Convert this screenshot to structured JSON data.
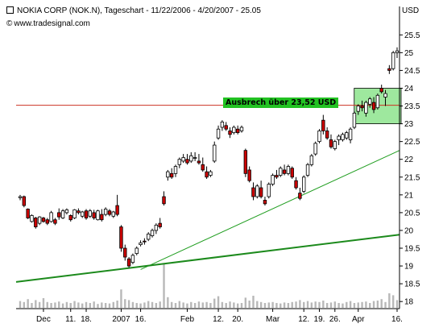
{
  "header": {
    "title": "NOKIA CORP (NOK.N), Tageschart - 11/22/2006 - 4/20/2007 - 25.05",
    "source": "www.tradesignal.com",
    "source_symbol": "©"
  },
  "axis_unit": "USD",
  "chart_data": {
    "type": "candlestick",
    "title": "NOKIA CORP (NOK.N), Tageschart - 11/22/2006 - 4/20/2007 - 25.05",
    "ylabel": "USD",
    "ylim": [
      17.8,
      26.3
    ],
    "y_ticks": [
      18,
      18.5,
      19,
      19.5,
      20,
      20.5,
      21,
      21.5,
      22,
      22.5,
      23,
      23.5,
      24,
      24.5,
      25,
      25.5
    ],
    "x_tick_labels": [
      "Dec",
      "11.",
      "18.",
      "2007",
      "16.",
      "Feb",
      "12.",
      "20.",
      "Mar",
      "12.",
      "19.",
      "26.",
      "Apr",
      "16."
    ],
    "x_tick_index": [
      6,
      13,
      17,
      26,
      31,
      43,
      51,
      56,
      65,
      73,
      77,
      81,
      87,
      97
    ],
    "candles": [
      [
        20.92,
        21.0,
        20.85,
        20.95
      ],
      [
        20.95,
        20.98,
        20.65,
        20.7
      ],
      [
        20.6,
        20.62,
        20.32,
        20.35
      ],
      [
        20.25,
        20.45,
        20.22,
        20.42
      ],
      [
        20.35,
        20.38,
        20.05,
        20.1
      ],
      [
        20.2,
        20.4,
        20.15,
        20.38
      ],
      [
        20.35,
        20.38,
        20.22,
        20.25
      ],
      [
        20.3,
        20.35,
        20.15,
        20.2
      ],
      [
        20.25,
        20.55,
        20.22,
        20.5
      ],
      [
        20.3,
        20.35,
        20.15,
        20.2
      ],
      [
        20.5,
        20.62,
        20.3,
        20.38
      ],
      [
        20.35,
        20.6,
        20.32,
        20.55
      ],
      [
        20.5,
        20.62,
        20.45,
        20.58
      ],
      [
        20.42,
        20.45,
        20.25,
        20.3
      ],
      [
        20.35,
        20.6,
        20.32,
        20.58
      ],
      [
        20.55,
        20.62,
        20.45,
        20.5
      ],
      [
        20.4,
        20.55,
        20.35,
        20.52
      ],
      [
        20.55,
        20.6,
        20.3,
        20.35
      ],
      [
        20.4,
        20.6,
        20.35,
        20.55
      ],
      [
        20.5,
        20.58,
        20.3,
        20.35
      ],
      [
        20.3,
        20.58,
        20.28,
        20.55
      ],
      [
        20.45,
        20.6,
        20.25,
        20.3
      ],
      [
        20.45,
        20.65,
        20.4,
        20.6
      ],
      [
        20.55,
        20.6,
        20.4,
        20.45
      ],
      [
        20.4,
        20.55,
        20.35,
        20.52
      ],
      [
        20.7,
        21.0,
        20.4,
        20.45
      ],
      [
        20.1,
        20.15,
        19.4,
        19.5
      ],
      [
        19.5,
        19.6,
        19.15,
        19.25
      ],
      [
        19.2,
        19.25,
        18.95,
        19.0
      ],
      [
        19.1,
        19.35,
        19.05,
        19.3
      ],
      [
        19.35,
        19.55,
        19.3,
        19.5
      ],
      [
        19.6,
        19.72,
        19.55,
        19.65
      ],
      [
        19.7,
        19.78,
        19.6,
        19.68
      ],
      [
        19.75,
        19.95,
        19.7,
        19.9
      ],
      [
        19.85,
        20.05,
        19.8,
        20.0
      ],
      [
        20.0,
        20.2,
        19.9,
        20.15
      ],
      [
        20.2,
        20.35,
        20.05,
        20.1
      ],
      [
        20.95,
        21.1,
        20.7,
        20.75
      ],
      [
        21.5,
        21.7,
        21.4,
        21.65
      ],
      [
        21.6,
        21.75,
        21.45,
        21.5
      ],
      [
        21.6,
        21.85,
        21.5,
        21.8
      ],
      [
        21.85,
        22.05,
        21.75,
        22.0
      ],
      [
        21.95,
        22.15,
        21.9,
        22.05
      ],
      [
        22.0,
        22.15,
        21.85,
        21.9
      ],
      [
        21.95,
        22.2,
        21.9,
        22.1
      ],
      [
        22.05,
        22.2,
        21.95,
        22.05
      ],
      [
        21.95,
        22.15,
        21.85,
        21.9
      ],
      [
        21.85,
        22.05,
        21.65,
        21.7
      ],
      [
        21.65,
        21.8,
        21.45,
        21.5
      ],
      [
        21.55,
        21.7,
        21.5,
        21.65
      ],
      [
        21.95,
        22.5,
        21.9,
        22.4
      ],
      [
        22.6,
        22.95,
        22.55,
        22.85
      ],
      [
        22.9,
        23.1,
        22.8,
        23.05
      ],
      [
        22.95,
        23.05,
        22.8,
        22.85
      ],
      [
        22.8,
        22.9,
        22.6,
        22.7
      ],
      [
        22.75,
        22.95,
        22.7,
        22.9
      ],
      [
        22.85,
        22.95,
        22.7,
        22.75
      ],
      [
        22.8,
        22.95,
        22.75,
        22.9
      ],
      [
        22.25,
        22.3,
        21.5,
        21.6
      ],
      [
        21.7,
        21.8,
        21.35,
        21.4
      ],
      [
        21.2,
        21.35,
        20.85,
        20.95
      ],
      [
        20.95,
        21.3,
        20.9,
        21.25
      ],
      [
        21.2,
        21.4,
        20.9,
        20.95
      ],
      [
        20.85,
        20.95,
        20.7,
        20.75
      ],
      [
        20.95,
        21.35,
        20.9,
        21.3
      ],
      [
        21.3,
        21.6,
        21.25,
        21.55
      ],
      [
        21.55,
        21.7,
        21.45,
        21.5
      ],
      [
        21.55,
        21.8,
        21.5,
        21.75
      ],
      [
        21.7,
        21.85,
        21.55,
        21.6
      ],
      [
        21.6,
        21.85,
        21.55,
        21.8
      ],
      [
        21.75,
        21.8,
        21.45,
        21.5
      ],
      [
        21.4,
        21.5,
        21.15,
        21.2
      ],
      [
        21.05,
        21.2,
        20.85,
        20.9
      ],
      [
        21.1,
        21.55,
        21.05,
        21.5
      ],
      [
        21.55,
        21.9,
        21.5,
        21.85
      ],
      [
        21.85,
        22.15,
        21.8,
        22.1
      ],
      [
        22.15,
        22.5,
        22.1,
        22.45
      ],
      [
        22.5,
        22.85,
        22.45,
        22.8
      ],
      [
        23.1,
        23.25,
        22.7,
        22.8
      ],
      [
        22.8,
        22.9,
        22.55,
        22.6
      ],
      [
        22.55,
        22.7,
        22.3,
        22.35
      ],
      [
        22.3,
        22.55,
        22.25,
        22.5
      ],
      [
        22.55,
        22.7,
        22.4,
        22.65
      ],
      [
        22.55,
        22.75,
        22.5,
        22.7
      ],
      [
        22.6,
        22.8,
        22.55,
        22.75
      ],
      [
        22.55,
        22.9,
        22.45,
        22.85
      ],
      [
        22.9,
        23.35,
        22.85,
        23.3
      ],
      [
        23.35,
        23.55,
        23.25,
        23.5
      ],
      [
        23.5,
        23.65,
        23.35,
        23.45
      ],
      [
        23.3,
        23.65,
        23.2,
        23.6
      ],
      [
        23.55,
        23.75,
        23.45,
        23.7
      ],
      [
        23.6,
        23.75,
        23.3,
        23.4
      ],
      [
        23.45,
        23.85,
        23.4,
        23.8
      ],
      [
        24.0,
        24.1,
        23.85,
        23.9
      ],
      [
        23.75,
        23.95,
        23.5,
        23.85
      ],
      [
        24.55,
        24.65,
        24.4,
        24.5
      ],
      [
        24.55,
        25.05,
        24.5,
        25.0
      ],
      [
        25.0,
        25.15,
        24.85,
        25.05
      ]
    ],
    "volume": [
      0.14,
      0.12,
      0.18,
      0.1,
      0.16,
      0.12,
      0.2,
      0.12,
      0.1,
      0.11,
      0.13,
      0.09,
      0.12,
      0.1,
      0.14,
      0.11,
      0.09,
      0.12,
      0.1,
      0.13,
      0.08,
      0.11,
      0.1,
      0.09,
      0.12,
      0.15,
      0.38,
      0.18,
      0.16,
      0.12,
      0.1,
      0.09,
      0.11,
      0.14,
      0.12,
      0.1,
      0.13,
      0.92,
      0.22,
      0.12,
      0.1,
      0.14,
      0.11,
      0.09,
      0.12,
      0.1,
      0.13,
      0.11,
      0.12,
      0.1,
      0.19,
      0.24,
      0.12,
      0.1,
      0.13,
      0.11,
      0.09,
      0.1,
      0.21,
      0.15,
      0.25,
      0.14,
      0.12,
      0.1,
      0.11,
      0.12,
      0.1,
      0.09,
      0.11,
      0.1,
      0.12,
      0.13,
      0.16,
      0.12,
      0.14,
      0.11,
      0.13,
      0.12,
      0.15,
      0.1,
      0.11,
      0.13,
      0.1,
      0.09,
      0.12,
      0.14,
      0.1,
      0.11,
      0.12,
      0.13,
      0.1,
      0.14,
      0.15,
      0.18,
      0.12,
      0.3,
      0.26,
      0.16
    ],
    "resistance_line": 23.52,
    "annotation": "Ausbrech über 23,52 USD",
    "breakout_box": {
      "x_start": 87,
      "x_end": 97,
      "y_low": 23.0,
      "y_high": 24.0
    },
    "trendline_thin": {
      "points": [
        [
          31,
          18.9
        ],
        [
          100,
          22.25
        ]
      ],
      "color": "#1f9d1f"
    },
    "trendline_thick": {
      "points": [
        [
          0,
          18.55
        ],
        [
          100,
          19.88
        ]
      ],
      "color": "#1c8a1c"
    },
    "colors": {
      "background": "#ffffff",
      "up": "#ffffff",
      "down": "#cc0000",
      "resistance": "#cc3322",
      "annotation": "#22c222",
      "breakout_box": "#9ee89e",
      "volume": "#b8b8b8"
    }
  }
}
